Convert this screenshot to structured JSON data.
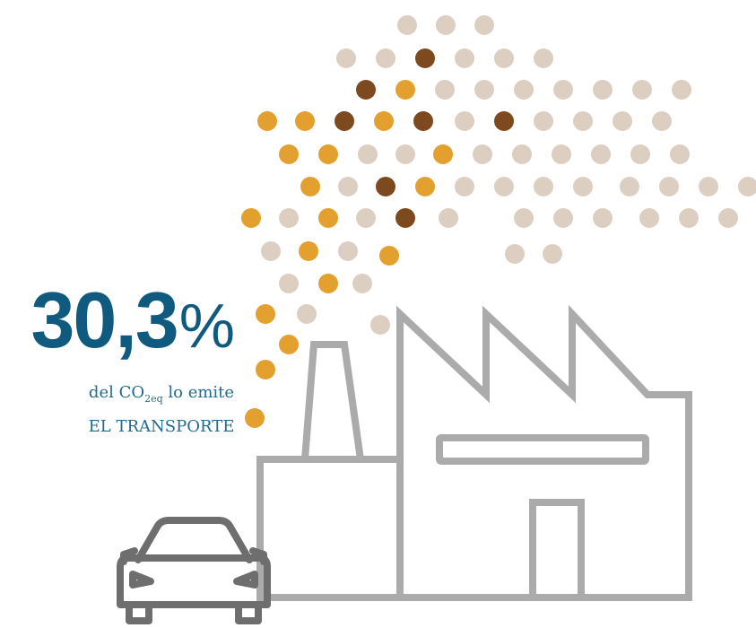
{
  "statistic": {
    "value": "30,3",
    "unit": "%",
    "caption_prefix": "del CO",
    "caption_subscript": "2eq",
    "caption_suffix": " lo emite",
    "caption_line2": "EL TRANSPORTE"
  },
  "colors": {
    "stat_text": "#0f5a7e",
    "caption_text": "#236a8e",
    "outline": "#ababab",
    "car": "#6e6e6e",
    "dot_light": "#dccfc2",
    "dot_orange": "#e4a02e",
    "dot_brown": "#7d4a1f"
  },
  "icons": [
    "factory-icon",
    "car-icon",
    "emission-dots"
  ]
}
